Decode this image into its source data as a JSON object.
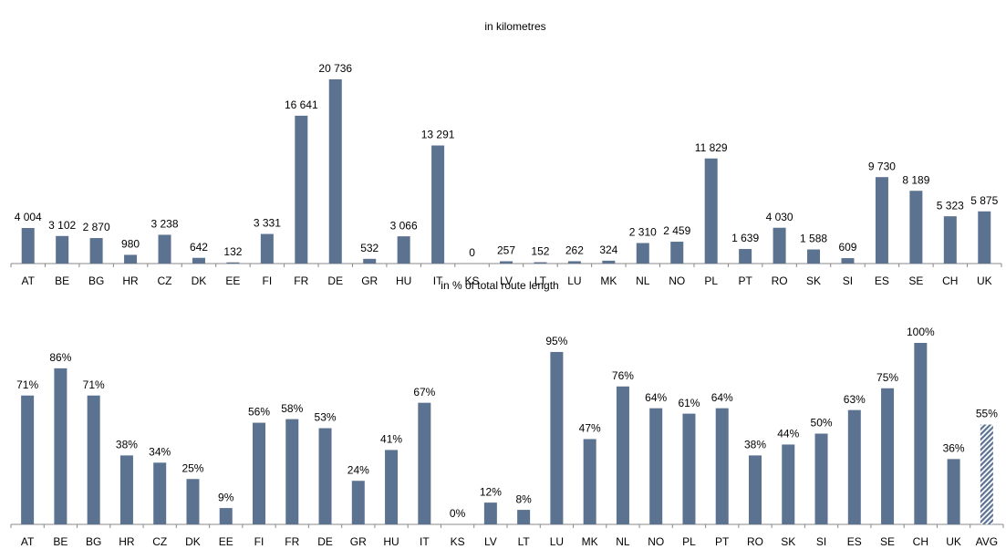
{
  "chart_data": [
    {
      "type": "bar",
      "title": "in kilometres",
      "categories": [
        "AT",
        "BE",
        "BG",
        "HR",
        "CZ",
        "DK",
        "EE",
        "FI",
        "FR",
        "DE",
        "GR",
        "HU",
        "IT",
        "KS",
        "LV",
        "LT",
        "LU",
        "MK",
        "NL",
        "NO",
        "PL",
        "PT",
        "RO",
        "SK",
        "SI",
        "ES",
        "SE",
        "CH",
        "UK"
      ],
      "values": [
        4004,
        3102,
        2870,
        980,
        3238,
        642,
        132,
        3331,
        16641,
        20736,
        532,
        3066,
        13291,
        0,
        257,
        152,
        262,
        324,
        2310,
        2459,
        11829,
        1639,
        4030,
        1588,
        609,
        9730,
        8189,
        5323,
        5875
      ],
      "value_labels": [
        "4 004",
        "3 102",
        "2 870",
        "980",
        "3 238",
        "642",
        "132",
        "3 331",
        "16 641",
        "20 736",
        "532",
        "3 066",
        "13 291",
        "0",
        "257",
        "152",
        "262",
        "324",
        "2 310",
        "2 459",
        "11 829",
        "1 639",
        "4 030",
        "1 588",
        "609",
        "9 730",
        "8 189",
        "5 323",
        "5 875"
      ],
      "color": "#5b7291"
    },
    {
      "type": "bar",
      "title": "in % of total route length",
      "categories": [
        "AT",
        "BE",
        "BG",
        "HR",
        "CZ",
        "DK",
        "EE",
        "FI",
        "FR",
        "DE",
        "GR",
        "HU",
        "IT",
        "KS",
        "LV",
        "LT",
        "LU",
        "MK",
        "NL",
        "NO",
        "PL",
        "PT",
        "RO",
        "SK",
        "SI",
        "ES",
        "SE",
        "CH",
        "UK",
        "AVG"
      ],
      "values": [
        71,
        86,
        71,
        38,
        34,
        25,
        9,
        56,
        58,
        53,
        24,
        41,
        67,
        0,
        12,
        8,
        95,
        47,
        76,
        64,
        61,
        64,
        38,
        44,
        50,
        63,
        75,
        100,
        36,
        55
      ],
      "value_labels": [
        "71%",
        "86%",
        "71%",
        "38%",
        "34%",
        "25%",
        "9%",
        "56%",
        "58%",
        "53%",
        "24%",
        "41%",
        "67%",
        "0%",
        "12%",
        "8%",
        "95%",
        "47%",
        "76%",
        "64%",
        "61%",
        "64%",
        "38%",
        "44%",
        "50%",
        "63%",
        "75%",
        "100%",
        "36%",
        "55%"
      ],
      "color": "#5b7291",
      "hatched": [
        29
      ]
    }
  ]
}
